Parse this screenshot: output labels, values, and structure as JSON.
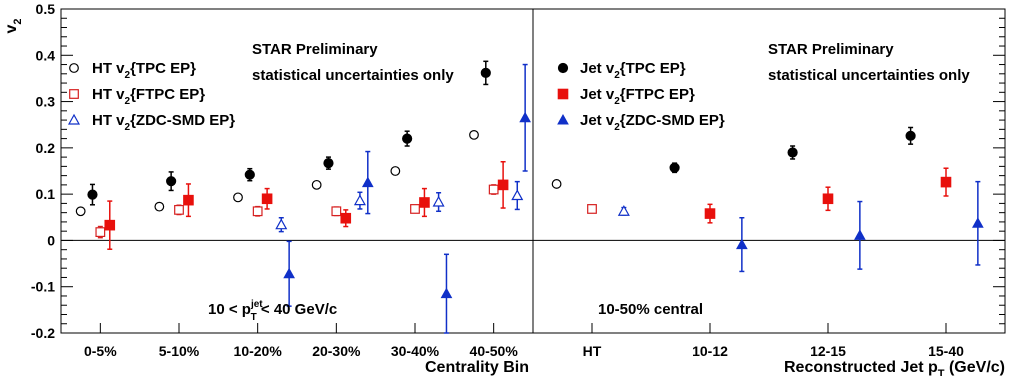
{
  "chart_data": [
    {
      "type": "scatter",
      "panel": "left",
      "ylabel": "v",
      "ylabel_sub": "2",
      "xlabel": "Centrality Bin",
      "ylim": [
        -0.2,
        0.5
      ],
      "yticks": [
        "-0.2",
        "-0.1",
        "0",
        "0.1",
        "0.2",
        "0.3",
        "0.4",
        "0.5"
      ],
      "categories": [
        "0-5%",
        "5-10%",
        "10-20%",
        "20-30%",
        "30-40%",
        "40-50%"
      ],
      "annotations": [
        "STAR Preliminary",
        "statistical uncertainties only"
      ],
      "cut_label": {
        "pre": "10 < p",
        "sub": "T",
        "sup": "jet",
        "post": " < 40 GeV/c"
      },
      "legend": [
        {
          "pre": "HT v",
          "sub": "2",
          "post": "{TPC EP}"
        },
        {
          "pre": "HT v",
          "sub": "2",
          "post": "{FTPC EP}"
        },
        {
          "pre": "HT v",
          "sub": "2",
          "post": "{ZDC-SMD EP}"
        }
      ],
      "series": [
        {
          "marker": "open-circle",
          "color": "#000000",
          "x_offset": -0.25,
          "values": [
            0.063,
            0.073,
            0.093,
            0.12,
            0.15,
            0.228
          ]
        },
        {
          "marker": "filled-circle",
          "color": "#000000",
          "x_offset": -0.1,
          "values": [
            0.099,
            0.128,
            0.142,
            0.167,
            0.22,
            0.362
          ],
          "err": [
            0.022,
            0.02,
            0.013,
            0.013,
            0.016,
            0.025
          ]
        },
        {
          "marker": "open-square",
          "color": "#d62020",
          "x_offset": 0.0,
          "values": [
            0.018,
            0.066,
            0.063,
            0.063,
            0.068,
            0.11
          ],
          "err": [
            0.012,
            0.01,
            0.01,
            0.009,
            0.008,
            0.01
          ]
        },
        {
          "marker": "filled-square",
          "color": "#e8100c",
          "x_offset": 0.12,
          "values": [
            0.033,
            0.087,
            0.09,
            0.048,
            0.082,
            0.12
          ],
          "err": [
            0.052,
            0.035,
            0.022,
            0.018,
            0.03,
            0.05
          ]
        },
        {
          "marker": "open-triangle",
          "color": "#1030c8",
          "x_offset": 0.3,
          "values": [
            null,
            null,
            0.034,
            0.086,
            0.083,
            0.097
          ],
          "err": [
            null,
            null,
            0.015,
            0.018,
            0.02,
            0.03
          ]
        },
        {
          "marker": "filled-triangle",
          "color": "#1030c8",
          "x_offset": 0.4,
          "values": [
            null,
            null,
            -0.072,
            0.125,
            -0.115,
            0.265
          ],
          "err": [
            null,
            null,
            0.07,
            0.067,
            0.085,
            0.115
          ]
        }
      ]
    },
    {
      "type": "scatter",
      "panel": "right",
      "xlabel": "Reconstructed Jet p",
      "xlabel_sub": "T",
      "xlabel_post": " (GeV/c)",
      "ylim": [
        -0.2,
        0.5
      ],
      "categories": [
        "HT",
        "10-12",
        "12-15",
        "15-40"
      ],
      "annotations": [
        "STAR Preliminary",
        "statistical uncertainties only",
        "10-50% central"
      ],
      "legend": [
        {
          "pre": "Jet v",
          "sub": "2",
          "post": "{TPC EP}"
        },
        {
          "pre": "Jet v",
          "sub": "2",
          "post": "{FTPC EP}"
        },
        {
          "pre": "Jet v",
          "sub": "2",
          "post": "{ZDC-SMD EP}"
        }
      ],
      "ht_points": [
        {
          "marker": "open-circle",
          "color": "#000000",
          "x_offset": -0.3,
          "value": 0.122
        },
        {
          "marker": "open-square",
          "color": "#d62020",
          "x_offset": 0.0,
          "value": 0.068
        },
        {
          "marker": "open-triangle",
          "color": "#1030c8",
          "x_offset": 0.27,
          "value": 0.063,
          "err": 0.008
        }
      ],
      "series": [
        {
          "marker": "filled-circle",
          "color": "#000000",
          "x_offset": -0.3,
          "values": [
            0.157,
            0.19,
            0.226
          ],
          "err": [
            0.01,
            0.014,
            0.018
          ]
        },
        {
          "marker": "filled-square",
          "color": "#e8100c",
          "x_offset": 0.0,
          "values": [
            0.058,
            0.09,
            0.126
          ],
          "err": [
            0.02,
            0.025,
            0.03
          ]
        },
        {
          "marker": "filled-triangle",
          "color": "#1030c8",
          "x_offset": 0.27,
          "values": [
            -0.009,
            0.011,
            0.037
          ],
          "err": [
            0.058,
            0.073,
            0.09
          ]
        }
      ]
    }
  ]
}
